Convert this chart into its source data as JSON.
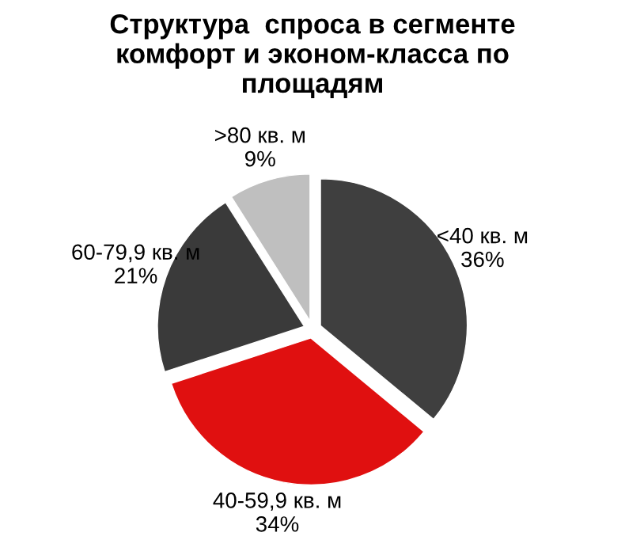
{
  "chart_data": {
    "type": "pie",
    "title": "Структура  спроса в сегменте\nкомфорт и эконом-класса по\nплощадям",
    "categories": [
      "<40 кв. м",
      "40-59,9 кв. м",
      "60-79,9 кв. м",
      ">80 кв. м"
    ],
    "values": [
      36,
      34,
      21,
      9
    ],
    "colors": [
      "#3f3f3f",
      "#e01010",
      "#3a3a3a",
      "#bfbfbf"
    ],
    "value_labels": [
      "36%",
      "34%",
      "21%",
      "9%"
    ],
    "legend": false
  }
}
